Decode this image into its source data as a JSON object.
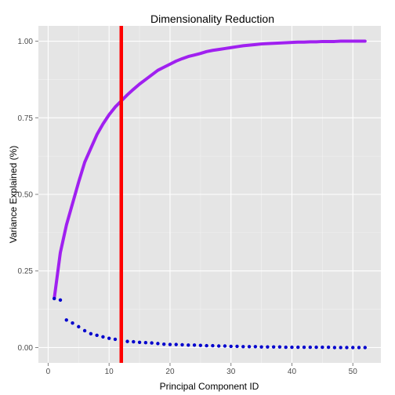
{
  "chart_data": {
    "type": "line",
    "title": "Dimensionality Reduction",
    "xlabel": "Principal Component ID",
    "ylabel": "Variance Explained (%)",
    "xlim": [
      -1.6,
      54.6
    ],
    "ylim": [
      -0.05,
      1.05
    ],
    "x_ticks": [
      0,
      10,
      20,
      30,
      40,
      50
    ],
    "x_tick_labels": [
      "0",
      "10",
      "20",
      "30",
      "40",
      "50"
    ],
    "y_ticks": [
      0.0,
      0.25,
      0.5,
      0.75,
      1.0
    ],
    "y_tick_labels": [
      "0.00",
      "0.25",
      "0.50",
      "0.75",
      "1.00"
    ],
    "grid": true,
    "panel_background": "#e5e5e5",
    "series": [
      {
        "kind": "line",
        "color": "#a020f0",
        "x": [
          1,
          2,
          3,
          4,
          5,
          6,
          7,
          8,
          9,
          10,
          11,
          12,
          13,
          14,
          15,
          16,
          17,
          18,
          19,
          20,
          21,
          22,
          23,
          24,
          25,
          26,
          27,
          28,
          29,
          30,
          31,
          32,
          33,
          34,
          35,
          36,
          37,
          38,
          39,
          40,
          41,
          42,
          43,
          44,
          45,
          46,
          47,
          48,
          49,
          50,
          51,
          52
        ],
        "y": [
          0.16,
          0.31,
          0.4,
          0.47,
          0.54,
          0.605,
          0.65,
          0.695,
          0.73,
          0.76,
          0.785,
          0.805,
          0.825,
          0.843,
          0.86,
          0.875,
          0.89,
          0.905,
          0.915,
          0.925,
          0.935,
          0.943,
          0.95,
          0.955,
          0.96,
          0.966,
          0.97,
          0.973,
          0.976,
          0.979,
          0.982,
          0.985,
          0.987,
          0.989,
          0.991,
          0.992,
          0.993,
          0.994,
          0.995,
          0.996,
          0.997,
          0.997,
          0.998,
          0.998,
          0.999,
          0.999,
          0.999,
          1.0,
          1.0,
          1.0,
          1.0,
          1.0
        ]
      },
      {
        "kind": "points",
        "color": "#0000cd",
        "x": [
          1,
          2,
          3,
          4,
          5,
          6,
          7,
          8,
          9,
          10,
          11,
          12,
          13,
          14,
          15,
          16,
          17,
          18,
          19,
          20,
          21,
          22,
          23,
          24,
          25,
          26,
          27,
          28,
          29,
          30,
          31,
          32,
          33,
          34,
          35,
          36,
          37,
          38,
          39,
          40,
          41,
          42,
          43,
          44,
          45,
          46,
          47,
          48,
          49,
          50,
          51,
          52
        ],
        "y": [
          0.16,
          0.155,
          0.09,
          0.08,
          0.068,
          0.055,
          0.045,
          0.04,
          0.035,
          0.03,
          0.027,
          0.024,
          0.02,
          0.019,
          0.017,
          0.016,
          0.015,
          0.013,
          0.011,
          0.01,
          0.01,
          0.009,
          0.008,
          0.008,
          0.007,
          0.006,
          0.006,
          0.005,
          0.005,
          0.004,
          0.004,
          0.003,
          0.003,
          0.003,
          0.002,
          0.002,
          0.002,
          0.002,
          0.001,
          0.001,
          0.001,
          0.001,
          0.001,
          0.001,
          0.001,
          0.001,
          0.0,
          0.0,
          0.0,
          0.0,
          0.0,
          0.0
        ]
      }
    ],
    "vline": {
      "x": 12,
      "color": "#ff0000"
    }
  }
}
